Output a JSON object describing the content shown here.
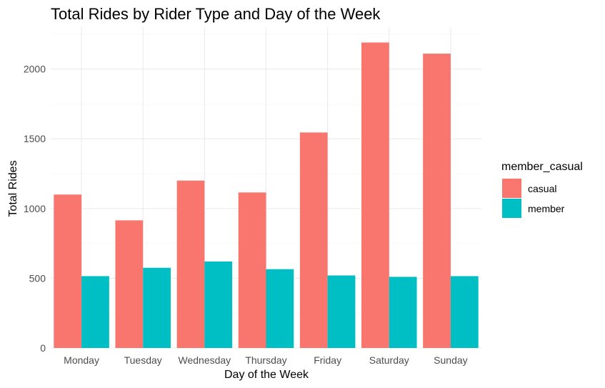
{
  "chart_data": {
    "type": "bar",
    "title": "Total Rides by Rider Type and Day of the Week",
    "xlabel": "Day of the Week",
    "ylabel": "Total Rides",
    "categories": [
      "Monday",
      "Tuesday",
      "Wednesday",
      "Thursday",
      "Friday",
      "Saturday",
      "Sunday"
    ],
    "series": [
      {
        "name": "casual",
        "color": "#F8766D",
        "values": [
          1100,
          915,
          1200,
          1115,
          1545,
          2190,
          2110
        ]
      },
      {
        "name": "member",
        "color": "#00BFC4",
        "values": [
          515,
          575,
          620,
          565,
          520,
          510,
          515
        ]
      }
    ],
    "ylim": [
      0,
      2300
    ],
    "yticks": [
      0,
      500,
      1000,
      1500,
      2000
    ],
    "grid": true,
    "legend": {
      "title": "member_casual",
      "position": "right"
    }
  }
}
